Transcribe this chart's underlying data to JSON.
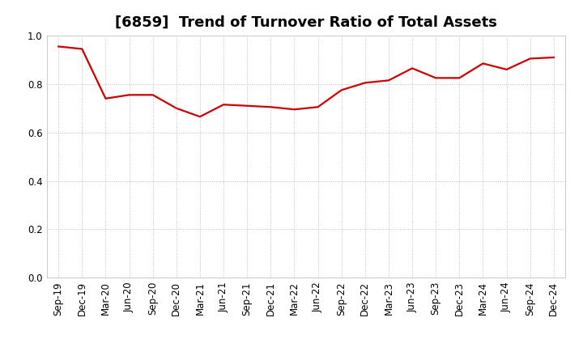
{
  "title": "[6859]  Trend of Turnover Ratio of Total Assets",
  "x_labels": [
    "Sep-19",
    "Dec-19",
    "Mar-20",
    "Jun-20",
    "Sep-20",
    "Dec-20",
    "Mar-21",
    "Jun-21",
    "Sep-21",
    "Dec-21",
    "Mar-22",
    "Jun-22",
    "Sep-22",
    "Dec-22",
    "Mar-23",
    "Jun-23",
    "Sep-23",
    "Dec-23",
    "Mar-24",
    "Jun-24",
    "Sep-24",
    "Dec-24"
  ],
  "y_values": [
    0.955,
    0.945,
    0.74,
    0.755,
    0.755,
    0.7,
    0.665,
    0.715,
    0.71,
    0.705,
    0.695,
    0.705,
    0.775,
    0.805,
    0.815,
    0.865,
    0.825,
    0.825,
    0.885,
    0.86,
    0.905,
    0.91
  ],
  "line_color": "#CC0000",
  "line_width": 1.6,
  "ylim": [
    0.0,
    1.0
  ],
  "yticks": [
    0.0,
    0.2,
    0.4,
    0.6,
    0.8,
    1.0
  ],
  "grid_color": "#bbbbbb",
  "bg_color": "#ffffff",
  "title_fontsize": 13,
  "tick_fontsize": 8.5
}
